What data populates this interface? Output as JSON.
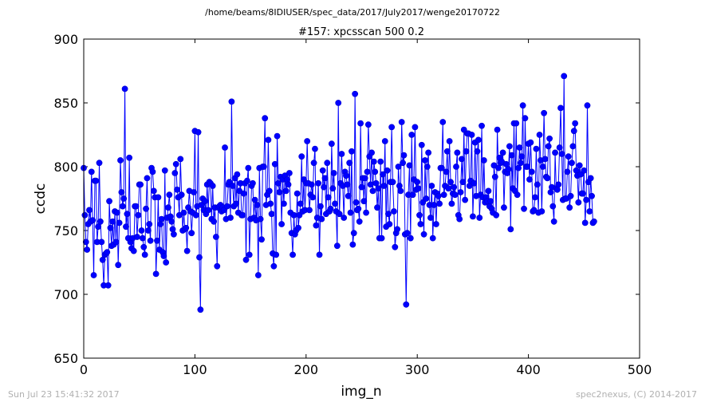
{
  "suptitle": "/home/beams/8IDIUSER/spec_data/2017/July2017/wenge20170722",
  "footer": {
    "left": "Sun Jul 23 15:41:32 2017",
    "right": "spec2nexus, (C) 2014-2017"
  },
  "colors": {
    "series": "#0000ff",
    "marker": "#0000cc"
  },
  "chart_data": {
    "type": "line",
    "title": "#157: xpcsscan 500 0.2",
    "xlabel": "img_n",
    "ylabel": "ccdc",
    "xlim": [
      0,
      500
    ],
    "ylim": [
      650,
      900
    ],
    "xticks": [
      0,
      100,
      200,
      300,
      400,
      500
    ],
    "yticks": [
      650,
      700,
      750,
      800,
      850,
      900
    ],
    "grid": false,
    "markers": "circle",
    "series": [
      {
        "name": "",
        "x_start": 0,
        "x_step": 1,
        "values": [
          799,
          762,
          741,
          735,
          755,
          766,
          757,
          796,
          758,
          715,
          789,
          789,
          741,
          753,
          803,
          757,
          741,
          727,
          707,
          731,
          732,
          733,
          707,
          773,
          752,
          738,
          757,
          739,
          765,
          741,
          764,
          723,
          756,
          805,
          780,
          769,
          775,
          861,
          753,
          763,
          744,
          807,
          741,
          736,
          744,
          734,
          769,
          769,
          745,
          762,
          786,
          786,
          750,
          744,
          737,
          731,
          767,
          791,
          750,
          755,
          742,
          799,
          796,
          781,
          776,
          716,
          742,
          776,
          735,
          755,
          759,
          733,
          730,
          797,
          725,
          760,
          768,
          778,
          761,
          757,
          751,
          747,
          795,
          802,
          782,
          776,
          762,
          806,
          778,
          750,
          764,
          751,
          752,
          734,
          768,
          781,
          765,
          748,
          764,
          780,
          828,
          762,
          769,
          827,
          729,
          688,
          770,
          775,
          766,
          773,
          763,
          786,
          766,
          788,
          787,
          759,
          785,
          757,
          768,
          745,
          722,
          768,
          769,
          770,
          765,
          768,
          766,
          815,
          759,
          769,
          786,
          788,
          760,
          851,
          785,
          769,
          791,
          771,
          794,
          764,
          781,
          787,
          762,
          762,
          779,
          787,
          727,
          789,
          799,
          731,
          759,
          785,
          787,
          760,
          774,
          758,
          770,
          715,
          799,
          759,
          743,
          800,
          800,
          838,
          770,
          778,
          821,
          781,
          771,
          763,
          732,
          722,
          802,
          731,
          824,
          787,
          780,
          792,
          755,
          790,
          771,
          793,
          781,
          790,
          786,
          795,
          764,
          748,
          731,
          762,
          747,
          750,
          779,
          752,
          762,
          771,
          808,
          765,
          790,
          766,
          787,
          820,
          787,
          766,
          778,
          786,
          776,
          803,
          814,
          754,
          760,
          787,
          731,
          769,
          759,
          797,
          784,
          791,
          763,
          803,
          776,
          765,
          767,
          818,
          783,
          795,
          771,
          765,
          738,
          850,
          763,
          787,
          810,
          785,
          760,
          796,
          793,
          786,
          777,
          803,
          764,
          812,
          739,
          748,
          857,
          772,
          766,
          767,
          757,
          834,
          784,
          791,
          773,
          791,
          764,
          796,
          833,
          808,
          786,
          811,
          781,
          804,
          796,
          787,
          768,
          783,
          744,
          804,
          744,
          794,
          785,
          820,
          753,
          797,
          763,
          755,
          788,
          831,
          788,
          765,
          737,
          748,
          751,
          800,
          785,
          781,
          835,
          803,
          809,
          747,
          692,
          748,
          778,
          801,
          744,
          825,
          778,
          790,
          831,
          782,
          788,
          783,
          762,
          755,
          817,
          772,
          747,
          805,
          775,
          800,
          811,
          770,
          760,
          785,
          744,
          770,
          780,
          755,
          779,
          777,
          771,
          799,
          799,
          835,
          778,
          785,
          796,
          812,
          783,
          820,
          788,
          771,
          779,
          784,
          778,
          800,
          811,
          762,
          759,
          780,
          806,
          788,
          829,
          774,
          812,
          826,
          826,
          785,
          789,
          825,
          761,
          787,
          819,
          777,
          812,
          821,
          760,
          778,
          832,
          776,
          805,
          772,
          776,
          773,
          781,
          769,
          773,
          767,
          764,
          801,
          792,
          762,
          829,
          799,
          807,
          803,
          804,
          811,
          768,
          796,
          802,
          795,
          798,
          816,
          751,
          809,
          783,
          834,
          781,
          834,
          778,
          799,
          815,
          803,
          808,
          848,
          767,
          838,
          800,
          800,
          818,
          790,
          819,
          796,
          765,
          766,
          776,
          814,
          786,
          764,
          825,
          805,
          765,
          800,
          842,
          806,
          792,
          791,
          816,
          822,
          780,
          784,
          769,
          757,
          811,
          783,
          782,
          786,
          815,
          846,
          810,
          774,
          871,
          775,
          775,
          796,
          808,
          768,
          777,
          803,
          816,
          828,
          834,
          797,
          793,
          772,
          801,
          794,
          779,
          779,
          797,
          756,
          774,
          848,
          788,
          765,
          791,
          777,
          756,
          757
        ]
      }
    ]
  }
}
